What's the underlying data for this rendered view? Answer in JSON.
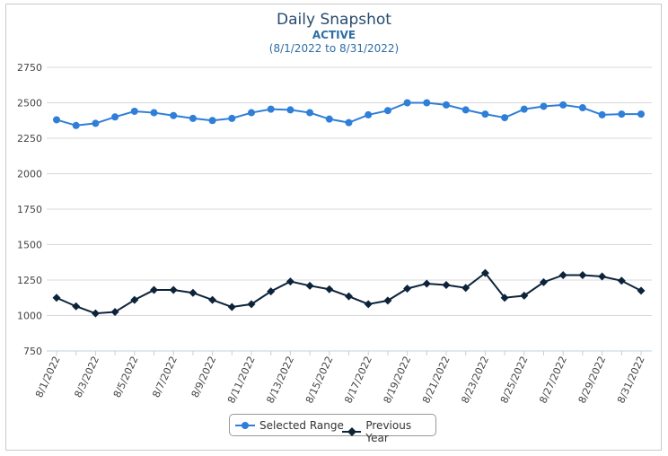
{
  "header": {
    "title": "Daily Snapshot",
    "subtitle": "ACTIVE",
    "date_range": "(8/1/2022 to 8/31/2022)"
  },
  "colors": {
    "selected": "#2f7ed8",
    "previous": "#0d233a",
    "grid": "#d8d8d8"
  },
  "chart_data": {
    "type": "line",
    "title": "Daily Snapshot",
    "subtitle": "ACTIVE",
    "xlabel": "",
    "ylabel": "",
    "ylim": [
      750,
      2750
    ],
    "y_ticks": [
      "750",
      "1000",
      "1250",
      "1500",
      "1750",
      "2000",
      "2250",
      "2500",
      "2750"
    ],
    "x": [
      "8/1/2022",
      "8/2/2022",
      "8/3/2022",
      "8/4/2022",
      "8/5/2022",
      "8/6/2022",
      "8/7/2022",
      "8/8/2022",
      "8/9/2022",
      "8/10/2022",
      "8/11/2022",
      "8/12/2022",
      "8/13/2022",
      "8/14/2022",
      "8/15/2022",
      "8/16/2022",
      "8/17/2022",
      "8/18/2022",
      "8/19/2022",
      "8/20/2022",
      "8/21/2022",
      "8/22/2022",
      "8/23/2022",
      "8/24/2022",
      "8/25/2022",
      "8/26/2022",
      "8/27/2022",
      "8/28/2022",
      "8/29/2022",
      "8/30/2022",
      "8/31/2022"
    ],
    "x_tick_labels": [
      "8/1/2022",
      "8/3/2022",
      "8/5/2022",
      "8/7/2022",
      "8/9/2022",
      "8/11/2022",
      "8/13/2022",
      "8/15/2022",
      "8/17/2022",
      "8/19/2022",
      "8/21/2022",
      "8/23/2022",
      "8/25/2022",
      "8/27/2022",
      "8/29/2022",
      "8/31/2022"
    ],
    "grid": true,
    "legend_position": "bottom-center",
    "series": [
      {
        "name": "Selected Range",
        "marker": "circle",
        "values": [
          2380,
          2340,
          2355,
          2400,
          2440,
          2430,
          2410,
          2390,
          2375,
          2390,
          2430,
          2455,
          2450,
          2430,
          2385,
          2360,
          2415,
          2445,
          2500,
          2500,
          2485,
          2450,
          2420,
          2395,
          2455,
          2475,
          2485,
          2465,
          2415,
          2420,
          2420
        ]
      },
      {
        "name": "Previous Year",
        "marker": "diamond",
        "values": [
          1125,
          1065,
          1015,
          1025,
          1110,
          1180,
          1180,
          1160,
          1110,
          1060,
          1080,
          1170,
          1240,
          1210,
          1185,
          1135,
          1080,
          1105,
          1190,
          1225,
          1215,
          1195,
          1300,
          1125,
          1140,
          1235,
          1285,
          1285,
          1275,
          1245,
          1175
        ]
      }
    ]
  }
}
